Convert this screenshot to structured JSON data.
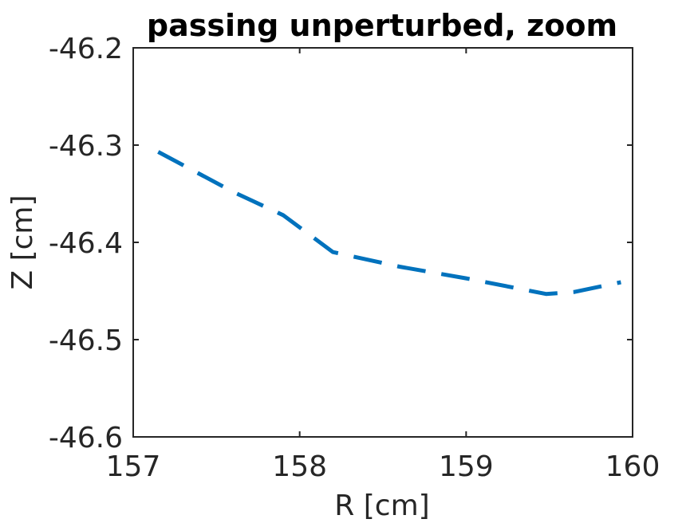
{
  "chart_data": {
    "type": "line",
    "title": "passing unperturbed, zoom",
    "xlabel": "R [cm]",
    "ylabel": "Z [cm]",
    "xlim": [
      157,
      160
    ],
    "ylim": [
      -46.6,
      -46.2
    ],
    "xticks": [
      157,
      158,
      159,
      160
    ],
    "xtick_labels": [
      "157",
      "158",
      "159",
      "160"
    ],
    "yticks": [
      -46.2,
      -46.3,
      -46.4,
      -46.5,
      -46.6
    ],
    "ytick_labels": [
      "-46.2",
      "-46.3",
      "-46.4",
      "-46.5",
      "-46.6"
    ],
    "grid": false,
    "series": [
      {
        "color": "#0072bd",
        "line_style": "dashed",
        "x": [
          157.15,
          157.6,
          157.9,
          158.2,
          158.6,
          159.0,
          159.48,
          159.65,
          159.93
        ],
        "y": [
          -46.307,
          -46.348,
          -46.372,
          -46.41,
          -46.425,
          -46.437,
          -46.453,
          -46.451,
          -46.441
        ]
      }
    ]
  }
}
